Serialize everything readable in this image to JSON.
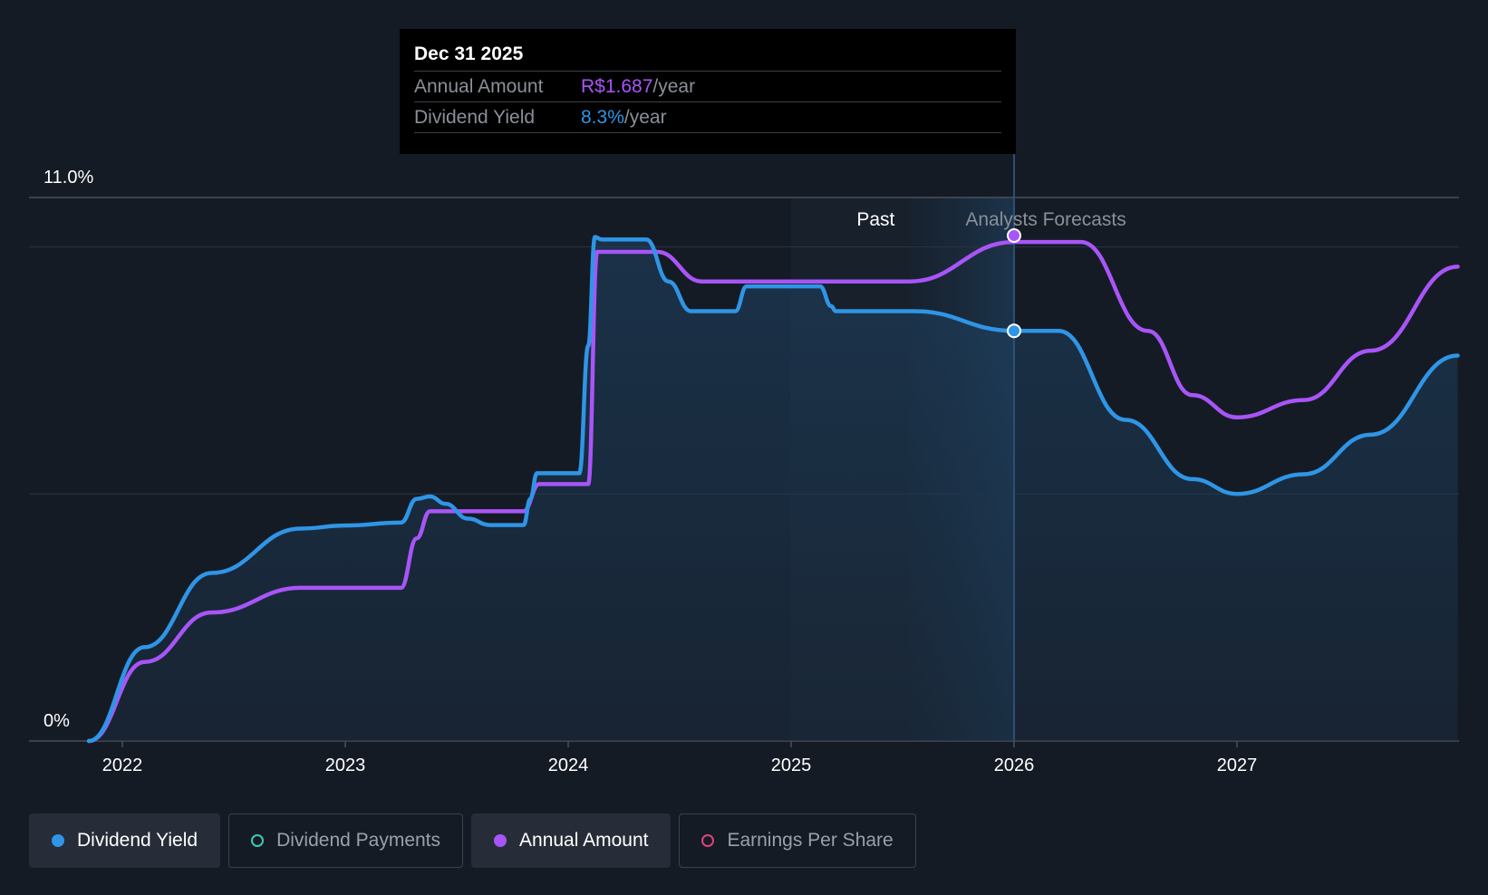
{
  "tooltip": {
    "date": "Dec 31 2025",
    "annual_amount_label": "Annual Amount",
    "annual_amount_value": "R$1.687",
    "dividend_yield_label": "Dividend Yield",
    "dividend_yield_value": "8.3%",
    "per_year": "/year"
  },
  "legend": [
    {
      "label": "Dividend Yield",
      "color": "#2f95e6",
      "active": true,
      "filled": true
    },
    {
      "label": "Dividend Payments",
      "color": "#3ec9b4",
      "active": false,
      "filled": false
    },
    {
      "label": "Annual Amount",
      "color": "#a855f7",
      "active": true,
      "filled": true
    },
    {
      "label": "Earnings Per Share",
      "color": "#d9467a",
      "active": false,
      "filled": false
    }
  ],
  "chart_data": {
    "type": "line",
    "title": "",
    "y_max_label": "11.0%",
    "y_min_label": "0%",
    "ylim": [
      0,
      11
    ],
    "xlim": [
      2021.85,
      2027.99
    ],
    "x_ticks": [
      2022,
      2023,
      2024,
      2025,
      2026,
      2027
    ],
    "x_tick_labels": [
      "2022",
      "2023",
      "2024",
      "2025",
      "2026",
      "2027"
    ],
    "gridlines_y": [
      0,
      5,
      10,
      11
    ],
    "past_label": "Past",
    "forecast_label": "Analysts Forecasts",
    "past_region_start": 2025.0,
    "forecast_start": 2025.53,
    "marker_x": 2026.0,
    "series": [
      {
        "name": "Dividend Yield",
        "color": "#2f95e6",
        "x": [
          2021.85,
          2022.1,
          2022.4,
          2022.8,
          2023.0,
          2023.25,
          2023.32,
          2023.38,
          2023.45,
          2023.55,
          2023.65,
          2023.8,
          2023.83,
          2023.86,
          2024.05,
          2024.09,
          2024.12,
          2024.15,
          2024.2,
          2024.35,
          2024.45,
          2024.55,
          2024.75,
          2024.8,
          2024.9,
          2025.13,
          2025.18,
          2025.2,
          2025.4,
          2025.55,
          2026.0,
          2026.2,
          2026.5,
          2026.8,
          2027.0,
          2027.3,
          2027.6,
          2027.99
        ],
        "values": [
          0.0,
          1.9,
          3.4,
          4.3,
          4.36,
          4.42,
          4.9,
          4.95,
          4.8,
          4.5,
          4.37,
          4.37,
          4.9,
          5.42,
          5.42,
          8.0,
          10.2,
          10.15,
          10.15,
          10.15,
          9.3,
          8.7,
          8.7,
          9.2,
          9.2,
          9.2,
          8.8,
          8.7,
          8.7,
          8.7,
          8.3,
          8.3,
          6.5,
          5.3,
          5.0,
          5.4,
          6.2,
          7.8
        ]
      },
      {
        "name": "Annual Amount",
        "color": "#a855f7",
        "x": [
          2021.85,
          2022.1,
          2022.4,
          2022.8,
          2023.0,
          2023.25,
          2023.32,
          2023.38,
          2023.8,
          2023.87,
          2024.09,
          2024.13,
          2024.4,
          2024.6,
          2025.53,
          2026.0,
          2026.3,
          2026.6,
          2026.8,
          2027.0,
          2027.3,
          2027.6,
          2027.99
        ],
        "values": [
          0.0,
          1.6,
          2.6,
          3.1,
          3.1,
          3.1,
          4.1,
          4.65,
          4.65,
          5.2,
          5.2,
          9.9,
          9.9,
          9.3,
          9.3,
          10.1,
          10.1,
          8.3,
          7.0,
          6.55,
          6.9,
          7.9,
          9.6
        ]
      }
    ],
    "markers": [
      {
        "series": "Annual Amount",
        "x": 2026.0,
        "y": 10.23
      },
      {
        "series": "Dividend Yield",
        "x": 2026.0,
        "y": 8.3
      }
    ]
  }
}
